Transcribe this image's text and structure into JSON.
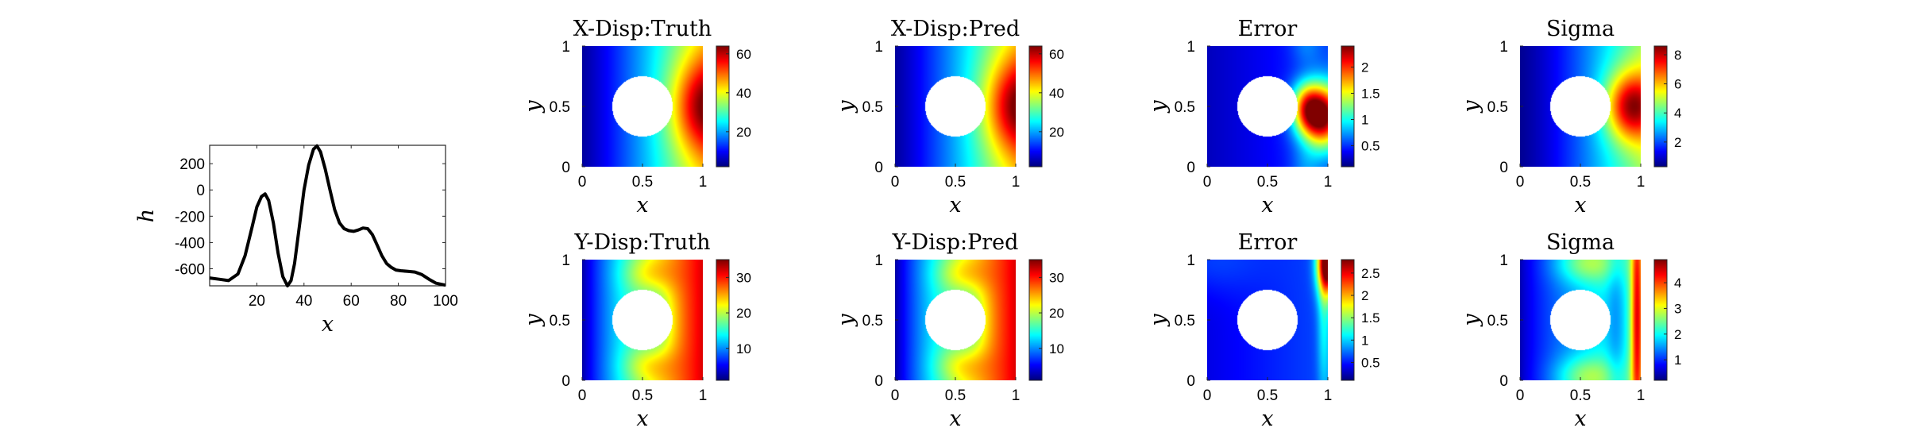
{
  "chart_data": [
    {
      "id": "line",
      "type": "line",
      "title": "",
      "xlabel": "x",
      "ylabel": "h",
      "xlim": [
        0,
        100
      ],
      "ylim": [
        -730,
        340
      ],
      "xticks": [
        20,
        40,
        60,
        80,
        100
      ],
      "xtick_labels": [
        "20",
        "40",
        "60",
        "80",
        "100"
      ],
      "yticks": [
        200,
        0,
        -200,
        -400,
        -600
      ],
      "ytick_labels": [
        "200",
        "0",
        "-200",
        "-400",
        "-600"
      ],
      "series": [
        {
          "name": "h(x)",
          "x": [
            0,
            4,
            8,
            12,
            15,
            18,
            20,
            22,
            23.5,
            25,
            27,
            29,
            31,
            33,
            34.5,
            36,
            38,
            40,
            42,
            44,
            45.5,
            47,
            49,
            51,
            53,
            55,
            57,
            59,
            61,
            63,
            65,
            67,
            69,
            71,
            73,
            75,
            77,
            79,
            81,
            84,
            87,
            90,
            93,
            96,
            100
          ],
          "y": [
            -670,
            -680,
            -690,
            -640,
            -500,
            -280,
            -130,
            -50,
            -30,
            -80,
            -250,
            -480,
            -660,
            -730,
            -690,
            -560,
            -280,
            0,
            190,
            310,
            335,
            290,
            160,
            0,
            -150,
            -250,
            -295,
            -310,
            -315,
            -305,
            -290,
            -295,
            -340,
            -420,
            -500,
            -560,
            -590,
            -610,
            -615,
            -620,
            -625,
            -645,
            -680,
            -710,
            -725
          ]
        }
      ]
    },
    {
      "id": "x-disp-truth",
      "type": "heatmap",
      "title": "X-Disp:Truth",
      "xlabel": "x",
      "ylabel": "y",
      "xlim": [
        0,
        1
      ],
      "ylim": [
        0,
        1
      ],
      "xtick_labels": [
        "0",
        "0.5",
        "1"
      ],
      "ytick_labels": [
        "0",
        "0.5",
        "1"
      ],
      "colorbar_ticks": [
        20,
        40,
        60
      ],
      "colorbar_tick_labels": [
        "20",
        "40",
        "60"
      ],
      "clim": [
        2,
        64
      ],
      "hole": {
        "center": [
          0.5,
          0.5
        ],
        "radius": 0.25
      },
      "field": "x_disp"
    },
    {
      "id": "x-disp-pred",
      "type": "heatmap",
      "title": "X-Disp:Pred",
      "xlabel": "x",
      "ylabel": "y",
      "xlim": [
        0,
        1
      ],
      "ylim": [
        0,
        1
      ],
      "xtick_labels": [
        "0",
        "0.5",
        "1"
      ],
      "ytick_labels": [
        "0",
        "0.5",
        "1"
      ],
      "colorbar_ticks": [
        20,
        40,
        60
      ],
      "colorbar_tick_labels": [
        "20",
        "40",
        "60"
      ],
      "clim": [
        2,
        64
      ],
      "hole": {
        "center": [
          0.5,
          0.5
        ],
        "radius": 0.25
      },
      "field": "x_disp"
    },
    {
      "id": "x-error",
      "type": "heatmap",
      "title": "Error",
      "xlabel": "x",
      "ylabel": "y",
      "xlim": [
        0,
        1
      ],
      "ylim": [
        0,
        1
      ],
      "xtick_labels": [
        "0",
        "0.5",
        "1"
      ],
      "ytick_labels": [
        "0",
        "0.5",
        "1"
      ],
      "colorbar_ticks": [
        0.5,
        1,
        1.5,
        2
      ],
      "colorbar_tick_labels": [
        "0.5",
        "1",
        "1.5",
        "2"
      ],
      "clim": [
        0.1,
        2.4
      ],
      "hole": {
        "center": [
          0.5,
          0.5
        ],
        "radius": 0.25
      },
      "field": "x_error"
    },
    {
      "id": "x-sigma",
      "type": "heatmap",
      "title": "Sigma",
      "xlabel": "x",
      "ylabel": "y",
      "xlim": [
        0,
        1
      ],
      "ylim": [
        0,
        1
      ],
      "xtick_labels": [
        "0",
        "0.5",
        "1"
      ],
      "ytick_labels": [
        "0",
        "0.5",
        "1"
      ],
      "colorbar_ticks": [
        2,
        4,
        6,
        8
      ],
      "colorbar_tick_labels": [
        "2",
        "4",
        "6",
        "8"
      ],
      "clim": [
        0.3,
        8.6
      ],
      "hole": {
        "center": [
          0.5,
          0.5
        ],
        "radius": 0.25
      },
      "field": "x_sigma"
    },
    {
      "id": "y-disp-truth",
      "type": "heatmap",
      "title": "Y-Disp:Truth",
      "xlabel": "x",
      "ylabel": "y",
      "xlim": [
        0,
        1
      ],
      "ylim": [
        0,
        1
      ],
      "xtick_labels": [
        "0",
        "0.5",
        "1"
      ],
      "ytick_labels": [
        "0",
        "0.5",
        "1"
      ],
      "colorbar_ticks": [
        10,
        20,
        30
      ],
      "colorbar_tick_labels": [
        "10",
        "20",
        "30"
      ],
      "clim": [
        1,
        35
      ],
      "hole": {
        "center": [
          0.5,
          0.5
        ],
        "radius": 0.25
      },
      "field": "y_disp"
    },
    {
      "id": "y-disp-pred",
      "type": "heatmap",
      "title": "Y-Disp:Pred",
      "xlabel": "x",
      "ylabel": "y",
      "xlim": [
        0,
        1
      ],
      "ylim": [
        0,
        1
      ],
      "xtick_labels": [
        "0",
        "0.5",
        "1"
      ],
      "ytick_labels": [
        "0",
        "0.5",
        "1"
      ],
      "colorbar_ticks": [
        10,
        20,
        30
      ],
      "colorbar_tick_labels": [
        "10",
        "20",
        "30"
      ],
      "clim": [
        1,
        35
      ],
      "hole": {
        "center": [
          0.5,
          0.5
        ],
        "radius": 0.25
      },
      "field": "y_disp"
    },
    {
      "id": "y-error",
      "type": "heatmap",
      "title": "Error",
      "xlabel": "x",
      "ylabel": "y",
      "xlim": [
        0,
        1
      ],
      "ylim": [
        0,
        1
      ],
      "xtick_labels": [
        "0",
        "0.5",
        "1"
      ],
      "ytick_labels": [
        "0",
        "0.5",
        "1"
      ],
      "colorbar_ticks": [
        0.5,
        1,
        1.5,
        2,
        2.5
      ],
      "colorbar_tick_labels": [
        "0.5",
        "1",
        "1.5",
        "2",
        "2.5"
      ],
      "clim": [
        0.1,
        2.8
      ],
      "hole": {
        "center": [
          0.5,
          0.5
        ],
        "radius": 0.25
      },
      "field": "y_error"
    },
    {
      "id": "y-sigma",
      "type": "heatmap",
      "title": "Sigma",
      "xlabel": "x",
      "ylabel": "y",
      "xlim": [
        0,
        1
      ],
      "ylim": [
        0,
        1
      ],
      "xtick_labels": [
        "0",
        "0.5",
        "1"
      ],
      "ytick_labels": [
        "0",
        "0.5",
        "1"
      ],
      "colorbar_ticks": [
        1,
        2,
        3,
        4
      ],
      "colorbar_tick_labels": [
        "1",
        "2",
        "3",
        "4"
      ],
      "clim": [
        0.2,
        4.9
      ],
      "hole": {
        "center": [
          0.5,
          0.5
        ],
        "radius": 0.25
      },
      "field": "y_sigma"
    }
  ]
}
